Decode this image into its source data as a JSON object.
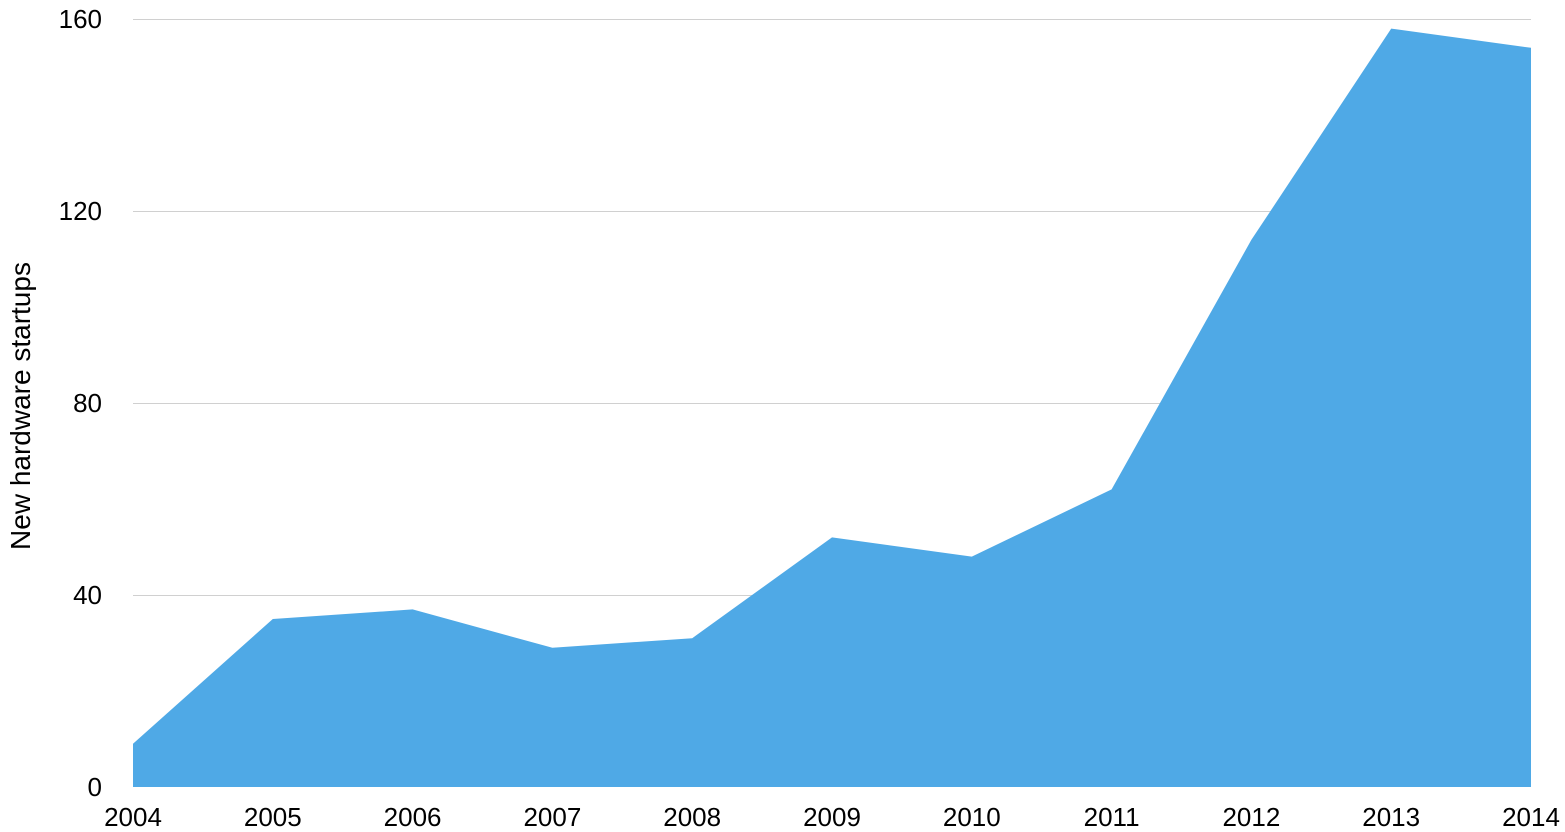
{
  "chart_data": {
    "type": "area",
    "title": "",
    "xlabel": "",
    "ylabel": "New hardware startups",
    "x": [
      "2004",
      "2005",
      "2006",
      "2007",
      "2008",
      "2009",
      "2010",
      "2011",
      "2012",
      "2013",
      "2014"
    ],
    "series": [
      {
        "values": [
          9,
          35,
          37,
          29,
          31,
          52,
          48,
          62,
          114,
          158,
          154
        ],
        "color": "#4FA9E6"
      }
    ],
    "ylim": [
      0,
      160
    ],
    "yticks": [
      0,
      40,
      80,
      120,
      160
    ],
    "grid": true,
    "legend": "none"
  }
}
